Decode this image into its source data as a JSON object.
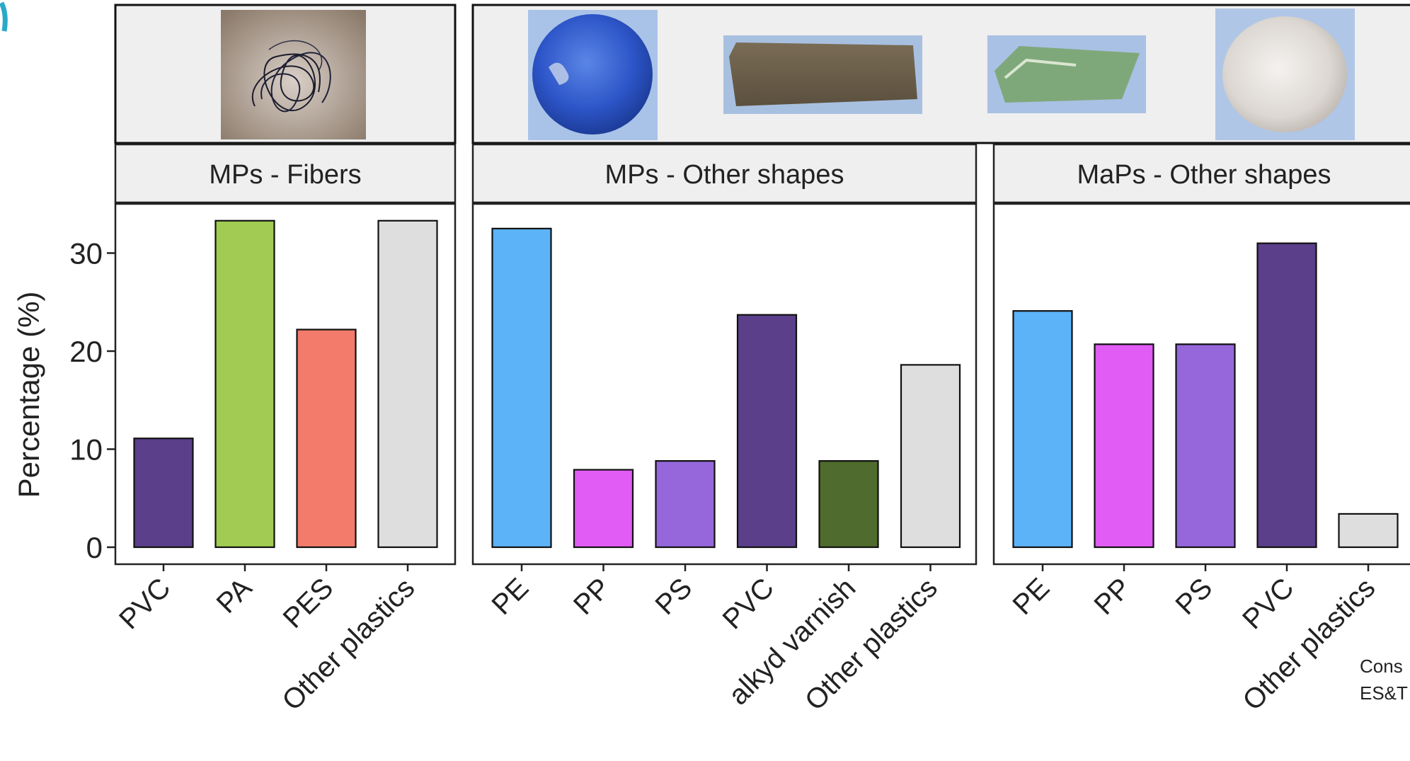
{
  "chart_data": {
    "type": "bar",
    "ylabel": "Percentage (%)",
    "ylim": [
      0,
      34
    ],
    "y_ticks": [
      "0",
      "10",
      "20",
      "30"
    ],
    "grid": false,
    "legend": "none",
    "panels": [
      {
        "title": "MPs - Fibers",
        "categories": [
          "PVC",
          "PA",
          "PES",
          "Other plastics"
        ],
        "values": [
          11.1,
          33.3,
          22.2,
          33.3
        ],
        "colors": [
          "#5b3f8a",
          "#a1cb52",
          "#f27b6b",
          "#dedede"
        ]
      },
      {
        "title": "MPs - Other shapes",
        "categories": [
          "PE",
          "PP",
          "PS",
          "PVC",
          "alkyd varnish",
          "Other plastics"
        ],
        "values": [
          32.5,
          7.9,
          8.8,
          23.7,
          8.8,
          18.6
        ],
        "colors": [
          "#5cb3f8",
          "#e15cf5",
          "#9567db",
          "#5b3f8a",
          "#4f6b2d",
          "#dedede"
        ]
      },
      {
        "title": "MaPs - Other shapes",
        "categories": [
          "PE",
          "PP",
          "PS",
          "PVC",
          "Other plastics"
        ],
        "values": [
          24.1,
          20.7,
          20.7,
          31.0,
          3.4
        ],
        "colors": [
          "#5cb3f8",
          "#e15cf5",
          "#9567db",
          "#5b3f8a",
          "#dedede"
        ]
      }
    ]
  },
  "citation": {
    "line1": "Cons",
    "line2": "ES&T"
  },
  "photos": {
    "fiber": "fiber-tangle-photo",
    "fragments": [
      "blue-sphere-photo",
      "brown-block-photo",
      "green-flake-photo",
      "white-foam-photo"
    ]
  },
  "colors": {
    "strip_bg": "#efefef",
    "axis": "#222222",
    "photo_bg": "#efefef",
    "accent_corner": "#2aa9c9"
  }
}
